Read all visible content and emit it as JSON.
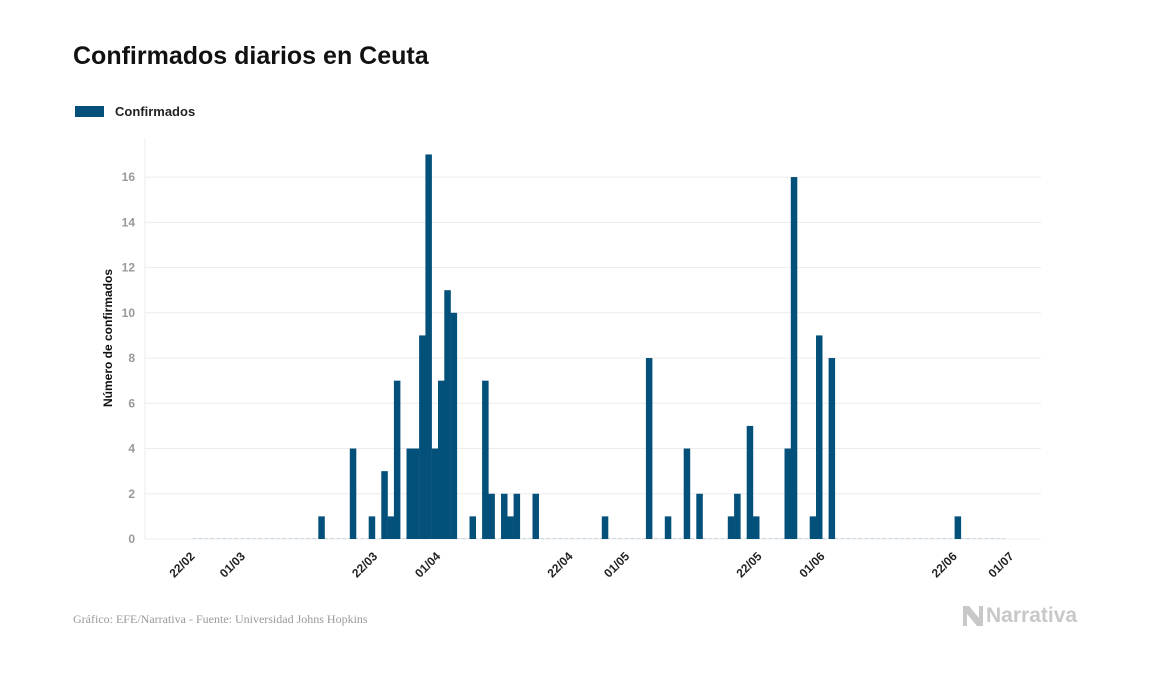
{
  "chart_data": {
    "type": "bar",
    "title": "Confirmados diarios en Ceuta",
    "ylabel": "Número de confirmados",
    "xlabel": "",
    "ylim": [
      0,
      17.5
    ],
    "yticks": [
      0,
      2,
      4,
      6,
      8,
      10,
      12,
      14,
      16
    ],
    "grid": true,
    "legend_placement": "top-left",
    "x_range": [
      "2020-02-22",
      "2020-06-29"
    ],
    "xtick_labels": [
      {
        "date": "2020-02-22",
        "label": "22/02"
      },
      {
        "date": "2020-03-01",
        "label": "01/03"
      },
      {
        "date": "2020-03-22",
        "label": "22/03"
      },
      {
        "date": "2020-04-01",
        "label": "01/04"
      },
      {
        "date": "2020-04-22",
        "label": "22/04"
      },
      {
        "date": "2020-05-01",
        "label": "01/05"
      },
      {
        "date": "2020-05-22",
        "label": "22/05"
      },
      {
        "date": "2020-06-01",
        "label": "01/06"
      },
      {
        "date": "2020-06-22",
        "label": "22/06"
      },
      {
        "date": "2020-07-01",
        "label": "01/07"
      }
    ],
    "series": [
      {
        "name": "Confirmados",
        "color": "#03507a",
        "points": [
          [
            "2020-03-13",
            1
          ],
          [
            "2020-03-18",
            4
          ],
          [
            "2020-03-21",
            1
          ],
          [
            "2020-03-23",
            3
          ],
          [
            "2020-03-24",
            1
          ],
          [
            "2020-03-25",
            7
          ],
          [
            "2020-03-27",
            4
          ],
          [
            "2020-03-28",
            4
          ],
          [
            "2020-03-29",
            9
          ],
          [
            "2020-03-30",
            17
          ],
          [
            "2020-03-31",
            4
          ],
          [
            "2020-04-01",
            7
          ],
          [
            "2020-04-02",
            11
          ],
          [
            "2020-04-03",
            10
          ],
          [
            "2020-04-06",
            1
          ],
          [
            "2020-04-08",
            7
          ],
          [
            "2020-04-09",
            2
          ],
          [
            "2020-04-11",
            2
          ],
          [
            "2020-04-12",
            1
          ],
          [
            "2020-04-13",
            2
          ],
          [
            "2020-04-16",
            2
          ],
          [
            "2020-04-27",
            1
          ],
          [
            "2020-05-04",
            8
          ],
          [
            "2020-05-07",
            1
          ],
          [
            "2020-05-10",
            4
          ],
          [
            "2020-05-12",
            2
          ],
          [
            "2020-05-17",
            1
          ],
          [
            "2020-05-18",
            2
          ],
          [
            "2020-05-20",
            5
          ],
          [
            "2020-05-21",
            1
          ],
          [
            "2020-05-26",
            4
          ],
          [
            "2020-05-27",
            16
          ],
          [
            "2020-05-30",
            1
          ],
          [
            "2020-05-31",
            9
          ],
          [
            "2020-06-02",
            8
          ],
          [
            "2020-06-22",
            1
          ]
        ]
      }
    ]
  },
  "footer": {
    "source": "Gráfico: EFE/Narrativa - Fuente: Universidad Johns Hopkins",
    "logo": "Narrativa"
  }
}
